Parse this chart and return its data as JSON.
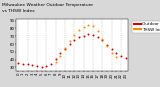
{
  "title_line1": "Milwaukee Weather Outdoor Temperature",
  "title_line2": "vs THSW Index",
  "title_fontsize": 3.2,
  "background_color": "#d8d8d8",
  "plot_bg": "#ffffff",
  "hours": [
    0,
    1,
    2,
    3,
    4,
    5,
    6,
    7,
    8,
    9,
    10,
    11,
    12,
    13,
    14,
    15,
    16,
    17,
    18,
    19,
    20,
    21,
    22,
    23
  ],
  "temp": [
    36,
    35,
    34,
    33,
    32,
    31,
    32,
    35,
    41,
    48,
    54,
    60,
    65,
    69,
    71,
    73,
    72,
    69,
    65,
    59,
    54,
    49,
    45,
    42
  ],
  "thsw": [
    null,
    null,
    null,
    null,
    null,
    null,
    null,
    null,
    37,
    45,
    55,
    64,
    72,
    78,
    82,
    85,
    83,
    77,
    67,
    57,
    49,
    43,
    null,
    null
  ],
  "temp_color": "#cc0000",
  "thsw_color": "#ff8800",
  "dot_size": 2.0,
  "ylim": [
    25,
    92
  ],
  "xlim": [
    -0.5,
    23.5
  ],
  "legend_temp_label": "Outdoor Temp",
  "legend_thsw_label": "THSW Index",
  "legend_fontsize": 3.0,
  "tick_fontsize": 2.8,
  "grid_color": "#aaaaaa",
  "yticks": [
    30,
    40,
    50,
    60,
    70,
    80,
    90
  ],
  "xtick_labels": [
    "0",
    "1",
    "2",
    "3",
    "4",
    "5",
    "6",
    "7",
    "8",
    "9",
    "10",
    "11",
    "12",
    "13",
    "14",
    "15",
    "16",
    "17",
    "18",
    "19",
    "20",
    "21",
    "22",
    "23"
  ]
}
